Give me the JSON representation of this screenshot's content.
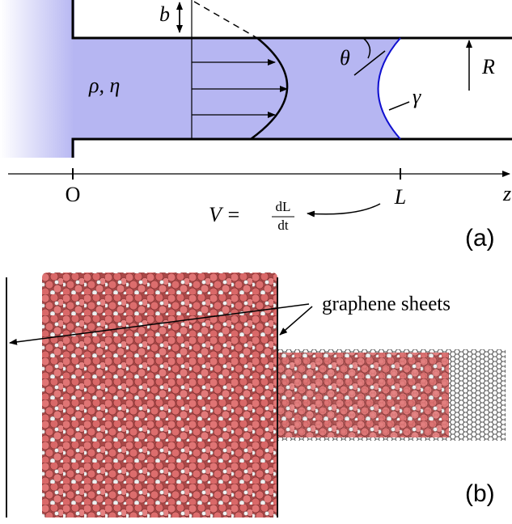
{
  "panel_a": {
    "labels": {
      "slip_length": "b",
      "contact_angle": "θ",
      "radius": "R",
      "fluid": "ρ, η",
      "surface_tension": "γ",
      "origin": "O",
      "length": "L",
      "axis": "z"
    },
    "velocity": {
      "lhs": "V =",
      "numerator": "dL",
      "denominator": "dt"
    },
    "tag": "(a)"
  },
  "panel_b": {
    "annotation": "graphene sheets",
    "tag": "(b)"
  }
}
